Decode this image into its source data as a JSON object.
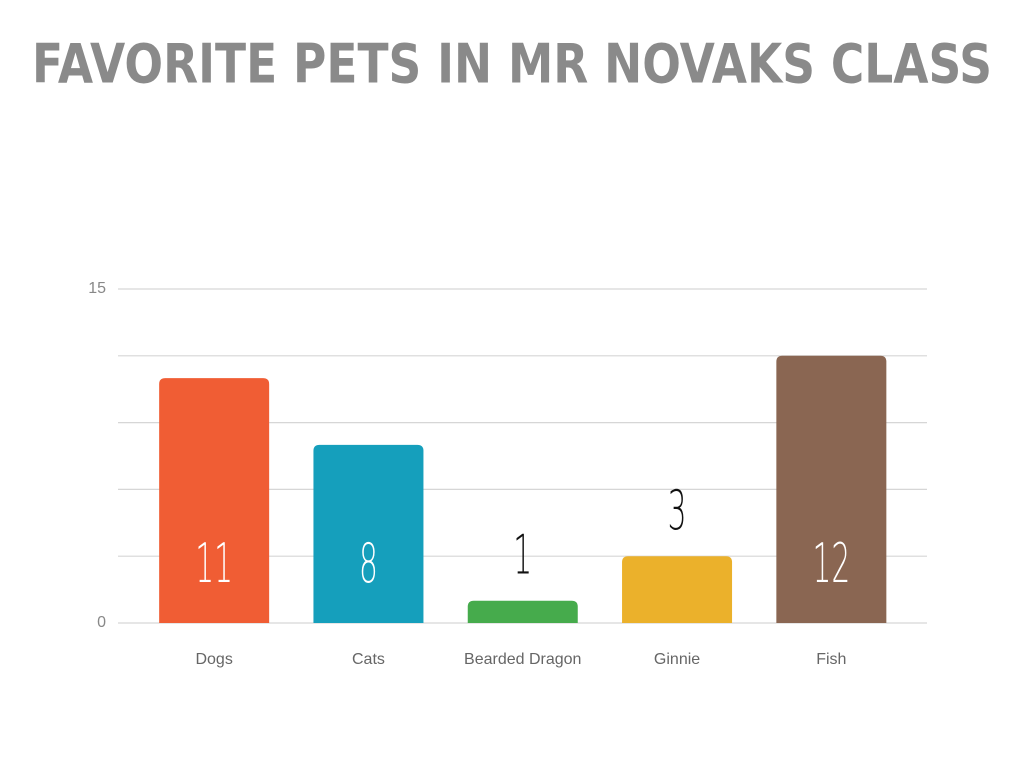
{
  "chart_data": {
    "type": "bar",
    "title": "FAVORITE PETS IN MR NOVAKS CLASS",
    "categories": [
      "Dogs",
      "Cats",
      "Bearded Dragon",
      "Ginnie",
      "Fish"
    ],
    "values": [
      11,
      8,
      1,
      3,
      12
    ],
    "colors": [
      "#f05d34",
      "#159fbc",
      "#46ab4c",
      "#ebb12b",
      "#8a6652"
    ],
    "ylim": [
      0,
      15
    ],
    "yticks": [
      0,
      15
    ],
    "gridlines": [
      0,
      3,
      6,
      9,
      12,
      15
    ],
    "grid": true
  }
}
